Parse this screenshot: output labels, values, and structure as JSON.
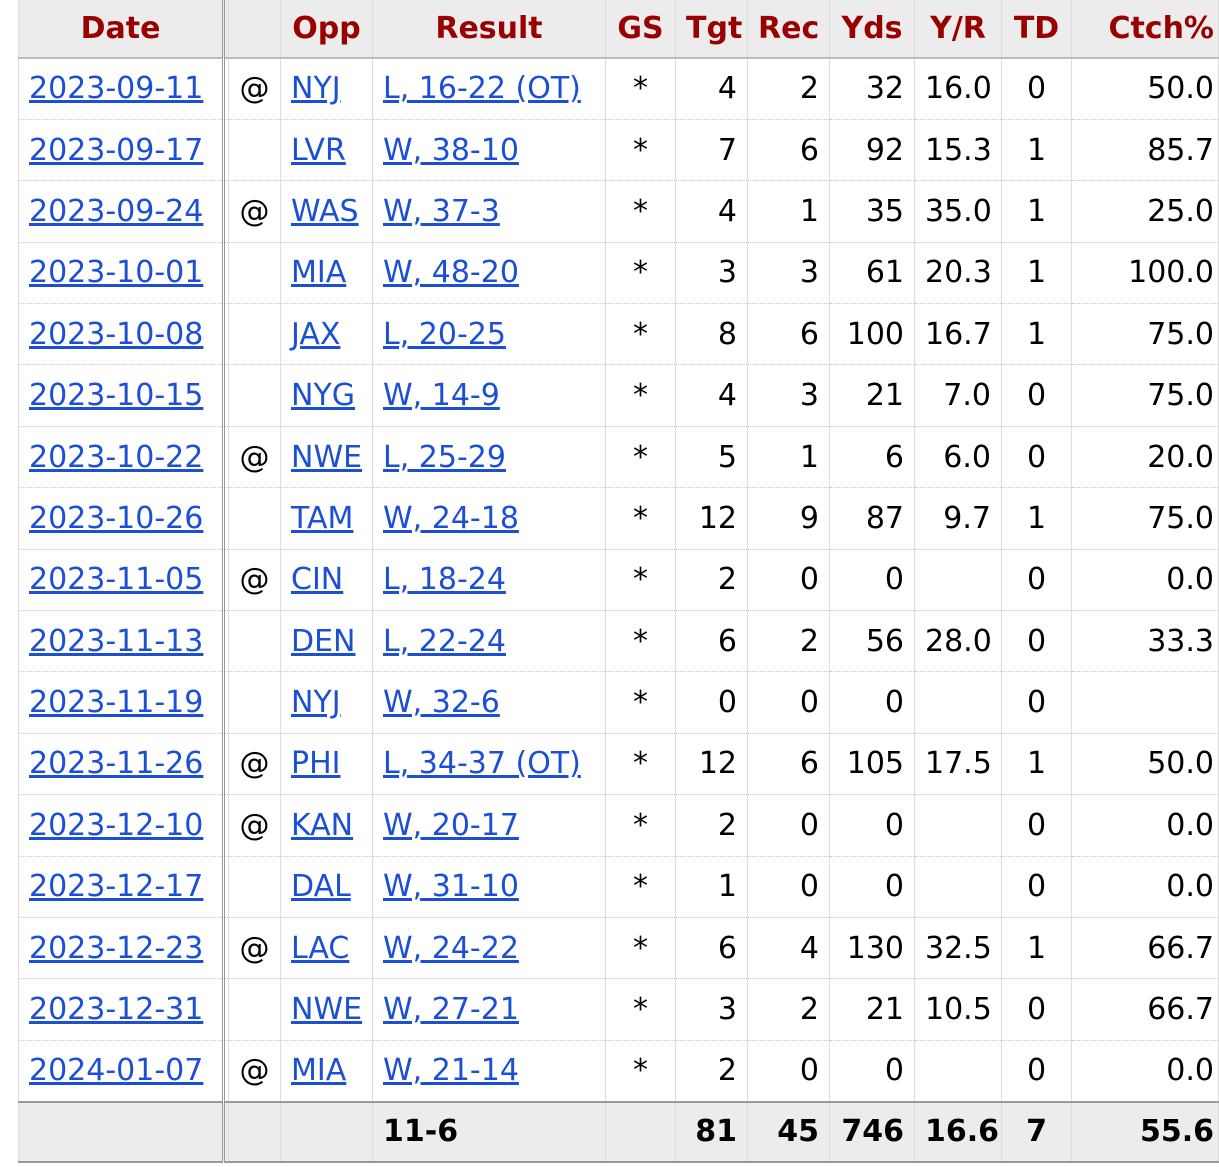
{
  "headers": {
    "date": "Date",
    "opp": "Opp",
    "result": "Result",
    "gs": "GS",
    "tgt": "Tgt",
    "rec": "Rec",
    "yds": "Yds",
    "yr": "Y/R",
    "td": "TD",
    "ctch": "Ctch%"
  },
  "rows": [
    {
      "date": "2023-09-11",
      "at": "@",
      "opp": "NYJ",
      "result": "L, 16-22 (OT)",
      "gs": "*",
      "tgt": "4",
      "rec": "2",
      "yds": "32",
      "yr": "16.0",
      "td": "0",
      "ctch": "50.0"
    },
    {
      "date": "2023-09-17",
      "at": "",
      "opp": "LVR",
      "result": "W, 38-10",
      "gs": "*",
      "tgt": "7",
      "rec": "6",
      "yds": "92",
      "yr": "15.3",
      "td": "1",
      "ctch": "85.7"
    },
    {
      "date": "2023-09-24",
      "at": "@",
      "opp": "WAS",
      "result": "W, 37-3",
      "gs": "*",
      "tgt": "4",
      "rec": "1",
      "yds": "35",
      "yr": "35.0",
      "td": "1",
      "ctch": "25.0"
    },
    {
      "date": "2023-10-01",
      "at": "",
      "opp": "MIA",
      "result": "W, 48-20",
      "gs": "*",
      "tgt": "3",
      "rec": "3",
      "yds": "61",
      "yr": "20.3",
      "td": "1",
      "ctch": "100.0"
    },
    {
      "date": "2023-10-08",
      "at": "",
      "opp": "JAX",
      "result": "L, 20-25",
      "gs": "*",
      "tgt": "8",
      "rec": "6",
      "yds": "100",
      "yr": "16.7",
      "td": "1",
      "ctch": "75.0"
    },
    {
      "date": "2023-10-15",
      "at": "",
      "opp": "NYG",
      "result": "W, 14-9",
      "gs": "*",
      "tgt": "4",
      "rec": "3",
      "yds": "21",
      "yr": "7.0",
      "td": "0",
      "ctch": "75.0"
    },
    {
      "date": "2023-10-22",
      "at": "@",
      "opp": "NWE",
      "result": "L, 25-29",
      "gs": "*",
      "tgt": "5",
      "rec": "1",
      "yds": "6",
      "yr": "6.0",
      "td": "0",
      "ctch": "20.0"
    },
    {
      "date": "2023-10-26",
      "at": "",
      "opp": "TAM",
      "result": "W, 24-18",
      "gs": "*",
      "tgt": "12",
      "rec": "9",
      "yds": "87",
      "yr": "9.7",
      "td": "1",
      "ctch": "75.0"
    },
    {
      "date": "2023-11-05",
      "at": "@",
      "opp": "CIN",
      "result": "L, 18-24",
      "gs": "*",
      "tgt": "2",
      "rec": "0",
      "yds": "0",
      "yr": "",
      "td": "0",
      "ctch": "0.0"
    },
    {
      "date": "2023-11-13",
      "at": "",
      "opp": "DEN",
      "result": "L, 22-24",
      "gs": "*",
      "tgt": "6",
      "rec": "2",
      "yds": "56",
      "yr": "28.0",
      "td": "0",
      "ctch": "33.3"
    },
    {
      "date": "2023-11-19",
      "at": "",
      "opp": "NYJ",
      "result": "W, 32-6",
      "gs": "*",
      "tgt": "0",
      "rec": "0",
      "yds": "0",
      "yr": "",
      "td": "0",
      "ctch": ""
    },
    {
      "date": "2023-11-26",
      "at": "@",
      "opp": "PHI",
      "result": "L, 34-37 (OT)",
      "gs": "*",
      "tgt": "12",
      "rec": "6",
      "yds": "105",
      "yr": "17.5",
      "td": "1",
      "ctch": "50.0"
    },
    {
      "date": "2023-12-10",
      "at": "@",
      "opp": "KAN",
      "result": "W, 20-17",
      "gs": "*",
      "tgt": "2",
      "rec": "0",
      "yds": "0",
      "yr": "",
      "td": "0",
      "ctch": "0.0"
    },
    {
      "date": "2023-12-17",
      "at": "",
      "opp": "DAL",
      "result": "W, 31-10",
      "gs": "*",
      "tgt": "1",
      "rec": "0",
      "yds": "0",
      "yr": "",
      "td": "0",
      "ctch": "0.0"
    },
    {
      "date": "2023-12-23",
      "at": "@",
      "opp": "LAC",
      "result": "W, 24-22",
      "gs": "*",
      "tgt": "6",
      "rec": "4",
      "yds": "130",
      "yr": "32.5",
      "td": "1",
      "ctch": "66.7"
    },
    {
      "date": "2023-12-31",
      "at": "",
      "opp": "NWE",
      "result": "W, 27-21",
      "gs": "*",
      "tgt": "3",
      "rec": "2",
      "yds": "21",
      "yr": "10.5",
      "td": "0",
      "ctch": "66.7"
    },
    {
      "date": "2024-01-07",
      "at": "@",
      "opp": "MIA",
      "result": "W, 21-14",
      "gs": "*",
      "tgt": "2",
      "rec": "0",
      "yds": "0",
      "yr": "",
      "td": "0",
      "ctch": "0.0"
    }
  ],
  "totals": {
    "result": "11-6",
    "tgt": "81",
    "rec": "45",
    "yds": "746",
    "yr": "16.6",
    "td": "7",
    "ctch": "55.6"
  },
  "colors": {
    "header_text": "#990000",
    "link": "#1a4fd6",
    "header_bg": "#ececec"
  }
}
